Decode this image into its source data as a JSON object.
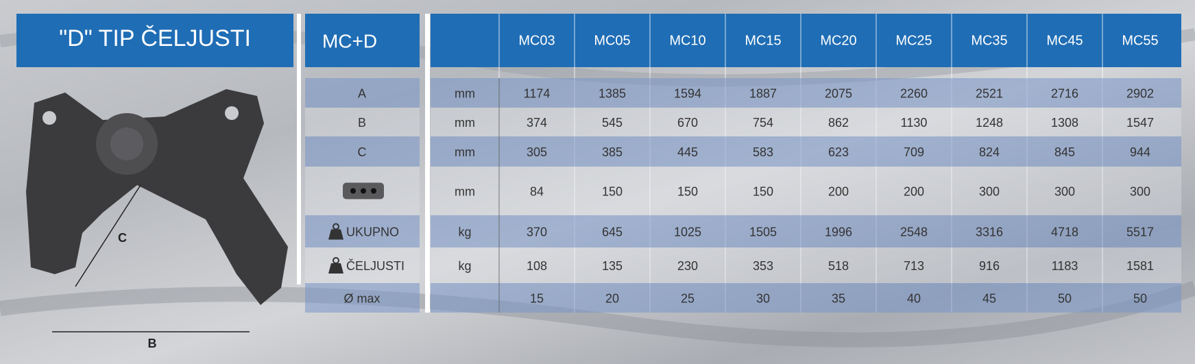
{
  "title": "\"D\" TIP ČELJUSTI",
  "diagram": {
    "labels": [
      "C",
      "B"
    ]
  },
  "table": {
    "corner": "MC+D",
    "columns": [
      "MC03",
      "MC05",
      "MC10",
      "MC15",
      "MC20",
      "MC25",
      "MC35",
      "MC45",
      "MC55"
    ],
    "rows": [
      {
        "label": "A",
        "unit": "mm",
        "values": [
          1174,
          1385,
          1594,
          1887,
          2075,
          2260,
          2521,
          2716,
          2902
        ]
      },
      {
        "label": "B",
        "unit": "mm",
        "values": [
          374,
          545,
          670,
          754,
          862,
          1130,
          1248,
          1308,
          1547
        ]
      },
      {
        "label": "C",
        "unit": "mm",
        "values": [
          305,
          385,
          445,
          583,
          623,
          709,
          824,
          845,
          944
        ]
      },
      {
        "unit": "mm",
        "values": [
          84,
          150,
          150,
          150,
          200,
          200,
          300,
          300,
          300
        ]
      },
      {
        "label": "UKUPNO",
        "unit": "kg",
        "values": [
          370,
          645,
          1025,
          1505,
          1996,
          2548,
          3316,
          4718,
          5517
        ]
      },
      {
        "label": "ČELJUSTI",
        "unit": "kg",
        "values": [
          108,
          135,
          230,
          353,
          518,
          713,
          916,
          1183,
          1581
        ]
      },
      {
        "label": "Ø max",
        "values": [
          15,
          20,
          25,
          30,
          35,
          40,
          45,
          50,
          50
        ]
      }
    ]
  }
}
